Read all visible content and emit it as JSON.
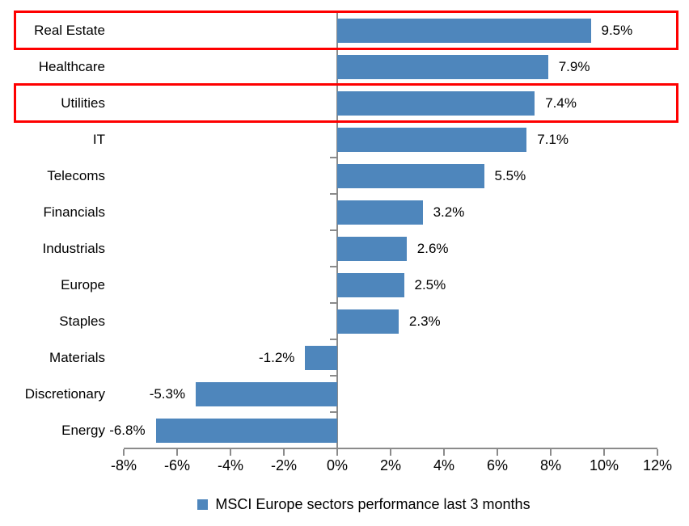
{
  "chart_data": {
    "type": "bar",
    "orientation": "horizontal",
    "title": "",
    "xlabel": "",
    "ylabel": "",
    "categories": [
      "Real Estate",
      "Healthcare",
      "Utilities",
      "IT",
      "Telecoms",
      "Financials",
      "Industrials",
      "Europe",
      "Staples",
      "Materials",
      "Discretionary",
      "Energy"
    ],
    "values": [
      9.5,
      7.9,
      7.4,
      7.1,
      5.5,
      3.2,
      2.6,
      2.5,
      2.3,
      -1.2,
      -5.3,
      -6.8
    ],
    "value_labels": [
      "9.5%",
      "7.9%",
      "7.4%",
      "7.1%",
      "5.5%",
      "3.2%",
      "2.6%",
      "2.5%",
      "2.3%",
      "-1.2%",
      "-5.3%",
      "-6.8%"
    ],
    "x_tick_values": [
      -8,
      -6,
      -4,
      -2,
      0,
      2,
      4,
      6,
      8,
      10,
      12
    ],
    "x_tick_labels": [
      "-8%",
      "-6%",
      "-4%",
      "-2%",
      "0%",
      "2%",
      "4%",
      "6%",
      "8%",
      "10%",
      "12%"
    ],
    "xlim": [
      -8,
      12
    ],
    "grid": false,
    "legend": "MSCI Europe sectors performance last 3 months",
    "legend_position": "bottom",
    "bar_color": "#4e86bc",
    "axis_color": "#8b8b8b",
    "text_color": "#000000",
    "highlight_color": "#fe0000",
    "highlighted_categories": [
      "Real Estate",
      "Utilities"
    ]
  }
}
